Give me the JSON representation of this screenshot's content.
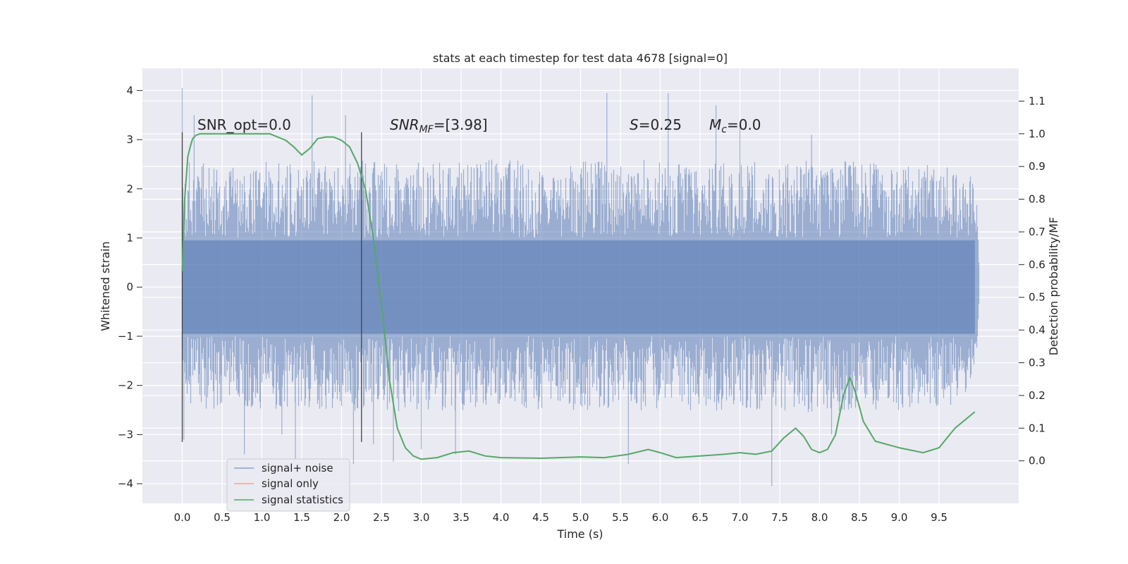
{
  "chart_data": {
    "type": "line",
    "title": "stats at each timestep for test data 4678 [signal=0]",
    "xlabel": "Time (s)",
    "ylabel": "Whitened strain",
    "y2label": "Detection probability/MF",
    "xlim": [
      -0.5,
      10.5
    ],
    "ylim": [
      -4.4,
      4.45
    ],
    "y2lim": [
      -0.13,
      1.2
    ],
    "xticks": [
      0.0,
      0.5,
      1.0,
      1.5,
      2.0,
      2.5,
      3.0,
      3.5,
      4.0,
      4.5,
      5.0,
      5.5,
      6.0,
      6.5,
      7.0,
      7.5,
      8.0,
      8.5,
      9.0,
      9.5
    ],
    "xtick_labels": [
      "0.0",
      "0.5",
      "1.0",
      "1.5",
      "2.0",
      "2.5",
      "3.0",
      "3.5",
      "4.0",
      "4.5",
      "5.0",
      "5.5",
      "6.0",
      "6.5",
      "7.0",
      "7.5",
      "8.0",
      "8.5",
      "9.0",
      "9.5"
    ],
    "yticks": [
      -4,
      -3,
      -2,
      -1,
      0,
      1,
      2,
      3,
      4
    ],
    "ytick_labels": [
      "−4",
      "−3",
      "−2",
      "−1",
      "0",
      "1",
      "2",
      "3",
      "4"
    ],
    "y2ticks": [
      0.0,
      0.1,
      0.2,
      0.3,
      0.4,
      0.5,
      0.6,
      0.7,
      0.8,
      0.9,
      1.0,
      1.1
    ],
    "y2tick_labels": [
      "0.0",
      "0.1",
      "0.2",
      "0.3",
      "0.4",
      "0.5",
      "0.6",
      "0.7",
      "0.8",
      "0.9",
      "1.0",
      "1.1"
    ],
    "grid": true,
    "legend_position": "lower-left",
    "annotations": {
      "snr_opt": "SNR_opt=0.0",
      "snr_mf_base": "SNR",
      "snr_mf_sub": "MF",
      "snr_mf_value": "=[3.98]",
      "s_var": "S",
      "s_value": "=0.25",
      "mc_base": "M",
      "mc_sub": "c",
      "mc_value": "=0.0"
    },
    "vertical_markers_x": [
      0.0,
      2.25
    ],
    "noise_envelope": {
      "x": [
        0.0,
        0.05,
        0.1,
        0.5,
        1.0,
        1.5,
        2.0,
        2.5,
        3.0,
        4.0,
        5.0,
        6.0,
        7.0,
        8.0,
        9.0,
        9.8,
        9.97,
        10.0
      ],
      "upper": [
        2.4,
        2.5,
        2.55,
        2.6,
        2.55,
        2.6,
        2.55,
        2.6,
        2.55,
        2.6,
        2.55,
        2.6,
        2.55,
        2.6,
        2.55,
        2.5,
        2.1,
        0.4
      ],
      "lower": [
        -1.8,
        -2.2,
        -2.4,
        -2.55,
        -2.5,
        -2.55,
        -2.5,
        -2.55,
        -2.5,
        -2.55,
        -2.5,
        -2.55,
        -2.5,
        -2.55,
        -2.5,
        -2.4,
        -1.5,
        -0.3
      ]
    },
    "noise_spikes": [
      {
        "x": 0.0,
        "y": 4.05
      },
      {
        "x": 0.02,
        "y": -3.1
      },
      {
        "x": 0.15,
        "y": 3.5
      },
      {
        "x": 0.78,
        "y": -3.4
      },
      {
        "x": 1.25,
        "y": -3.0
      },
      {
        "x": 1.42,
        "y": -3.5
      },
      {
        "x": 1.63,
        "y": 3.9
      },
      {
        "x": 2.05,
        "y": 3.5
      },
      {
        "x": 2.15,
        "y": -3.6
      },
      {
        "x": 2.4,
        "y": -3.2
      },
      {
        "x": 2.65,
        "y": -3.55
      },
      {
        "x": 3.0,
        "y": -3.3
      },
      {
        "x": 3.43,
        "y": -3.4
      },
      {
        "x": 5.33,
        "y": 3.95
      },
      {
        "x": 5.6,
        "y": -3.6
      },
      {
        "x": 6.1,
        "y": 3.95
      },
      {
        "x": 6.7,
        "y": 3.7
      },
      {
        "x": 7.4,
        "y": -4.05
      },
      {
        "x": 7.0,
        "y": 3.3
      },
      {
        "x": 7.9,
        "y": 3.1
      },
      {
        "x": 8.15,
        "y": -3.0
      }
    ],
    "series": [
      {
        "name": "signal+ noise",
        "color": "#4c72b0",
        "axis": "left",
        "values": []
      },
      {
        "name": "signal only",
        "color": "#dd8452",
        "axis": "left",
        "values": []
      },
      {
        "name": "signal statistics",
        "color": "#55a868",
        "axis": "right",
        "x": [
          0.0,
          0.03,
          0.07,
          0.1,
          0.13,
          0.17,
          0.22,
          0.3,
          0.5,
          0.8,
          1.0,
          1.1,
          1.2,
          1.3,
          1.4,
          1.5,
          1.6,
          1.7,
          1.8,
          1.9,
          2.0,
          2.1,
          2.2,
          2.25,
          2.3,
          2.4,
          2.5,
          2.6,
          2.7,
          2.8,
          2.9,
          3.0,
          3.2,
          3.4,
          3.6,
          3.8,
          4.0,
          4.5,
          5.0,
          5.3,
          5.6,
          5.85,
          6.0,
          6.2,
          6.5,
          6.8,
          7.0,
          7.2,
          7.4,
          7.55,
          7.7,
          7.8,
          7.9,
          8.0,
          8.1,
          8.2,
          8.3,
          8.38,
          8.45,
          8.55,
          8.7,
          9.0,
          9.3,
          9.5,
          9.7,
          9.95
        ],
        "values": [
          0.58,
          0.8,
          0.93,
          0.96,
          0.985,
          0.995,
          1.0,
          1.0,
          1.0,
          1.0,
          1.0,
          1.0,
          0.99,
          0.98,
          0.96,
          0.935,
          0.955,
          0.985,
          0.99,
          0.99,
          0.98,
          0.96,
          0.91,
          0.87,
          0.83,
          0.68,
          0.48,
          0.25,
          0.1,
          0.04,
          0.015,
          0.005,
          0.01,
          0.025,
          0.03,
          0.015,
          0.01,
          0.008,
          0.012,
          0.01,
          0.02,
          0.035,
          0.025,
          0.01,
          0.015,
          0.02,
          0.025,
          0.02,
          0.03,
          0.07,
          0.1,
          0.075,
          0.035,
          0.025,
          0.035,
          0.08,
          0.2,
          0.255,
          0.21,
          0.12,
          0.06,
          0.04,
          0.025,
          0.04,
          0.1,
          0.15
        ]
      }
    ]
  }
}
